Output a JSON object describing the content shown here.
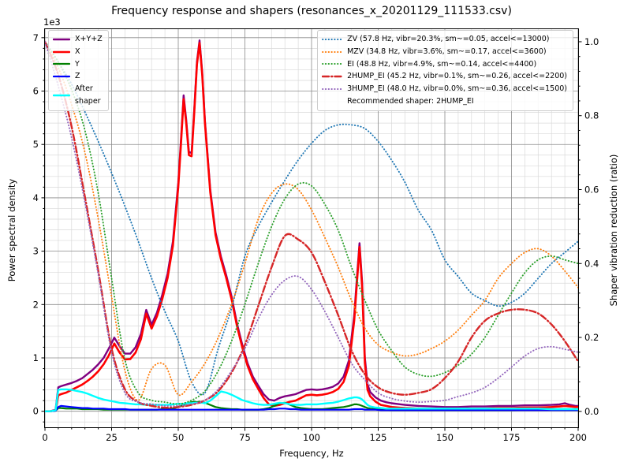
{
  "chart_data": {
    "type": "line",
    "title": "Frequency response and shapers (resonances_x_20201129_111533.csv)",
    "xlabel": "Frequency, Hz",
    "ylabel_left": "Power spectral density",
    "ylabel_right": "Shaper vibration reduction (ratio)",
    "offset_text": "1e3",
    "xlim": [
      0,
      200
    ],
    "ylim_left": [
      -300,
      7160
    ],
    "ylim_right": [
      -0.043,
      1.034
    ],
    "xticks": {
      "values": [
        0,
        25,
        50,
        75,
        100,
        125,
        150,
        175,
        200
      ],
      "minor_step": 5
    },
    "yticks_left": {
      "values": [
        0,
        1,
        2,
        3,
        4,
        5,
        6,
        7
      ],
      "minor_step": 0.2,
      "unit": 1000
    },
    "yticks_right": {
      "values": [
        0.0,
        0.2,
        0.4,
        0.6,
        0.8,
        1.0
      ],
      "labels": [
        "0.0",
        "0.2",
        "0.4",
        "0.6",
        "0.8",
        "1.0"
      ],
      "minor_step": 0.04
    },
    "grid": {
      "major_color": "#8a8a8a",
      "minor_color": "#d9d9d9"
    },
    "spine_color": "#000000",
    "psd": {
      "x": [
        0,
        2,
        4,
        5,
        6,
        8,
        10,
        12,
        14,
        16,
        18,
        20,
        22,
        24,
        26,
        28,
        30,
        32,
        34,
        36,
        38,
        40,
        42,
        44,
        46,
        48,
        50,
        51,
        52,
        53,
        54,
        55,
        56,
        57,
        58,
        59,
        60,
        62,
        64,
        66,
        68,
        70,
        72,
        74,
        76,
        78,
        80,
        82,
        84,
        86,
        88,
        90,
        92,
        94,
        96,
        98,
        100,
        102,
        104,
        106,
        108,
        110,
        112,
        114,
        116,
        117,
        118,
        119,
        120,
        121,
        122,
        124,
        126,
        128,
        130,
        135,
        140,
        145,
        150,
        155,
        160,
        165,
        170,
        175,
        180,
        185,
        190,
        193,
        195,
        197,
        199,
        200
      ],
      "units": "1e3",
      "series": [
        {
          "name": "xyz",
          "label": "X+Y+Z",
          "color": "#800080",
          "style": "solid",
          "lw": 2.4,
          "values": [
            0,
            0,
            0.03,
            0.45,
            0.47,
            0.5,
            0.53,
            0.57,
            0.62,
            0.7,
            0.78,
            0.88,
            1.0,
            1.18,
            1.38,
            1.22,
            1.08,
            1.08,
            1.2,
            1.45,
            1.9,
            1.62,
            1.85,
            2.18,
            2.58,
            3.18,
            4.28,
            5.08,
            5.92,
            5.46,
            4.86,
            4.84,
            5.66,
            6.55,
            6.95,
            6.35,
            5.45,
            4.15,
            3.35,
            2.9,
            2.55,
            2.15,
            1.65,
            1.25,
            0.9,
            0.65,
            0.48,
            0.32,
            0.22,
            0.2,
            0.25,
            0.28,
            0.3,
            0.32,
            0.36,
            0.4,
            0.41,
            0.4,
            0.41,
            0.43,
            0.46,
            0.52,
            0.65,
            0.95,
            1.8,
            2.5,
            3.15,
            2.4,
            1.0,
            0.5,
            0.36,
            0.26,
            0.2,
            0.17,
            0.15,
            0.12,
            0.1,
            0.09,
            0.08,
            0.08,
            0.09,
            0.09,
            0.1,
            0.1,
            0.11,
            0.11,
            0.12,
            0.13,
            0.15,
            0.12,
            0.1,
            0.1
          ]
        },
        {
          "name": "x",
          "label": "X",
          "color": "#ff0000",
          "style": "solid",
          "lw": 2.6,
          "values": [
            0,
            0,
            0.02,
            0.3,
            0.32,
            0.35,
            0.4,
            0.45,
            0.5,
            0.57,
            0.65,
            0.75,
            0.88,
            1.05,
            1.27,
            1.1,
            0.97,
            0.98,
            1.1,
            1.35,
            1.83,
            1.55,
            1.78,
            2.1,
            2.5,
            3.1,
            4.2,
            5.0,
            5.85,
            5.4,
            4.8,
            4.78,
            5.6,
            6.5,
            6.9,
            6.3,
            5.4,
            4.1,
            3.3,
            2.85,
            2.5,
            2.1,
            1.6,
            1.2,
            0.85,
            0.6,
            0.42,
            0.25,
            0.13,
            0.1,
            0.12,
            0.15,
            0.18,
            0.2,
            0.25,
            0.3,
            0.31,
            0.3,
            0.31,
            0.33,
            0.36,
            0.42,
            0.55,
            0.85,
            1.7,
            2.4,
            3.08,
            2.3,
            0.9,
            0.4,
            0.28,
            0.18,
            0.12,
            0.1,
            0.08,
            0.06,
            0.05,
            0.04,
            0.04,
            0.04,
            0.05,
            0.05,
            0.06,
            0.06,
            0.07,
            0.07,
            0.08,
            0.09,
            0.1,
            0.09,
            0.08,
            0.08
          ]
        },
        {
          "name": "y",
          "label": "Y",
          "color": "#008000",
          "style": "solid",
          "lw": 2.2,
          "values": [
            0,
            0,
            0.01,
            0.06,
            0.06,
            0.05,
            0.05,
            0.05,
            0.04,
            0.04,
            0.04,
            0.04,
            0.03,
            0.03,
            0.03,
            0.03,
            0.03,
            0.03,
            0.03,
            0.03,
            0.03,
            0.03,
            0.03,
            0.04,
            0.04,
            0.05,
            0.08,
            0.1,
            0.12,
            0.14,
            0.16,
            0.17,
            0.18,
            0.17,
            0.18,
            0.16,
            0.16,
            0.12,
            0.08,
            0.06,
            0.05,
            0.04,
            0.04,
            0.03,
            0.03,
            0.03,
            0.03,
            0.04,
            0.06,
            0.1,
            0.15,
            0.16,
            0.12,
            0.08,
            0.06,
            0.05,
            0.04,
            0.04,
            0.04,
            0.05,
            0.06,
            0.07,
            0.08,
            0.1,
            0.13,
            0.13,
            0.12,
            0.1,
            0.08,
            0.06,
            0.05,
            0.04,
            0.03,
            0.03,
            0.02,
            0.02,
            0.02,
            0.02,
            0.02,
            0.02,
            0.02,
            0.02,
            0.02,
            0.02,
            0.03,
            0.03,
            0.03,
            0.04,
            0.04,
            0.04,
            0.03,
            0.03
          ]
        },
        {
          "name": "z",
          "label": "Z",
          "color": "#0000ff",
          "style": "solid",
          "lw": 2.2,
          "values": [
            0,
            0,
            0.01,
            0.08,
            0.1,
            0.09,
            0.08,
            0.07,
            0.06,
            0.06,
            0.05,
            0.05,
            0.05,
            0.04,
            0.04,
            0.04,
            0.04,
            0.03,
            0.03,
            0.03,
            0.03,
            0.03,
            0.03,
            0.03,
            0.03,
            0.03,
            0.03,
            0.03,
            0.03,
            0.03,
            0.03,
            0.03,
            0.03,
            0.03,
            0.03,
            0.03,
            0.03,
            0.03,
            0.03,
            0.03,
            0.03,
            0.03,
            0.03,
            0.03,
            0.03,
            0.03,
            0.03,
            0.03,
            0.04,
            0.04,
            0.05,
            0.05,
            0.04,
            0.04,
            0.03,
            0.03,
            0.03,
            0.03,
            0.03,
            0.03,
            0.03,
            0.03,
            0.03,
            0.03,
            0.04,
            0.04,
            0.04,
            0.04,
            0.03,
            0.03,
            0.03,
            0.03,
            0.02,
            0.02,
            0.02,
            0.02,
            0.02,
            0.02,
            0.02,
            0.02,
            0.02,
            0.02,
            0.02,
            0.02,
            0.02,
            0.02,
            0.02,
            0.02,
            0.02,
            0.02,
            0.02,
            0.02
          ]
        },
        {
          "name": "after-shaper",
          "label": "After\nshaper",
          "color": "#00ffff",
          "style": "solid",
          "lw": 2.4,
          "values": [
            0,
            0,
            0.02,
            0.4,
            0.41,
            0.41,
            0.4,
            0.38,
            0.36,
            0.33,
            0.29,
            0.25,
            0.22,
            0.2,
            0.18,
            0.16,
            0.15,
            0.14,
            0.13,
            0.13,
            0.12,
            0.12,
            0.12,
            0.12,
            0.12,
            0.13,
            0.14,
            0.14,
            0.14,
            0.15,
            0.15,
            0.15,
            0.16,
            0.16,
            0.16,
            0.16,
            0.15,
            0.2,
            0.28,
            0.37,
            0.35,
            0.31,
            0.26,
            0.21,
            0.18,
            0.15,
            0.13,
            0.12,
            0.12,
            0.14,
            0.16,
            0.15,
            0.13,
            0.12,
            0.12,
            0.13,
            0.13,
            0.13,
            0.14,
            0.15,
            0.16,
            0.18,
            0.21,
            0.24,
            0.26,
            0.26,
            0.25,
            0.22,
            0.17,
            0.12,
            0.09,
            0.07,
            0.06,
            0.05,
            0.05,
            0.05,
            0.05,
            0.05,
            0.05,
            0.05,
            0.05,
            0.05,
            0.05,
            0.05,
            0.05,
            0.05,
            0.04,
            0.04,
            0.04,
            0.04,
            0.04,
            0.04
          ]
        }
      ]
    },
    "shapers": {
      "x": [
        0,
        5,
        10,
        15,
        20,
        25,
        30,
        35,
        40,
        45,
        50,
        55,
        60,
        65,
        70,
        75,
        80,
        85,
        90,
        95,
        100,
        105,
        110,
        115,
        120,
        125,
        130,
        135,
        140,
        145,
        150,
        155,
        160,
        165,
        170,
        175,
        180,
        185,
        190,
        195,
        200
      ],
      "recommended_label": "Recommended shaper: 2HUMP_EI",
      "series": [
        {
          "name": "zv",
          "label": "ZV (57.8 Hz, vibr=20.3%, sm~=0.05, accel<=13000)",
          "color": "#1f77b4",
          "style": "dotted",
          "lw": 1.9,
          "values": [
            1.0,
            0.945,
            0.885,
            0.81,
            0.73,
            0.645,
            0.555,
            0.46,
            0.36,
            0.27,
            0.19,
            0.08,
            0.05,
            0.17,
            0.28,
            0.42,
            0.5,
            0.565,
            0.625,
            0.68,
            0.725,
            0.76,
            0.775,
            0.775,
            0.765,
            0.73,
            0.68,
            0.62,
            0.545,
            0.49,
            0.41,
            0.365,
            0.32,
            0.3,
            0.285,
            0.295,
            0.32,
            0.36,
            0.4,
            0.43,
            0.46
          ]
        },
        {
          "name": "mzv",
          "label": "MZV (34.8 Hz, vibr=3.6%, sm~=0.17, accel<=3600)",
          "color": "#ff7f0e",
          "style": "dotted",
          "lw": 1.9,
          "values": [
            1.0,
            0.93,
            0.83,
            0.7,
            0.52,
            0.31,
            0.11,
            0.03,
            0.115,
            0.125,
            0.045,
            0.08,
            0.13,
            0.2,
            0.29,
            0.4,
            0.52,
            0.59,
            0.615,
            0.6,
            0.545,
            0.47,
            0.39,
            0.3,
            0.225,
            0.18,
            0.16,
            0.15,
            0.155,
            0.17,
            0.19,
            0.22,
            0.26,
            0.3,
            0.36,
            0.4,
            0.43,
            0.44,
            0.42,
            0.38,
            0.335
          ]
        },
        {
          "name": "ei",
          "label": "EI (48.8 Hz, vibr=4.9%, sm~=0.14, accel<=4400)",
          "color": "#2ca02c",
          "style": "dotted",
          "lw": 1.9,
          "values": [
            1.0,
            0.945,
            0.87,
            0.76,
            0.59,
            0.36,
            0.14,
            0.05,
            0.03,
            0.025,
            0.02,
            0.03,
            0.055,
            0.11,
            0.19,
            0.29,
            0.4,
            0.5,
            0.575,
            0.615,
            0.61,
            0.56,
            0.49,
            0.39,
            0.3,
            0.22,
            0.165,
            0.12,
            0.1,
            0.095,
            0.105,
            0.125,
            0.155,
            0.2,
            0.26,
            0.32,
            0.375,
            0.41,
            0.42,
            0.41,
            0.4
          ]
        },
        {
          "name": "2hump-ei",
          "label": "2HUMP_EI (45.2 Hz, vibr=0.1%, sm~=0.26, accel<=2200)",
          "color": "#d62728",
          "style": "dashdot",
          "lw": 2.4,
          "values": [
            1.0,
            0.91,
            0.77,
            0.58,
            0.38,
            0.17,
            0.06,
            0.025,
            0.015,
            0.01,
            0.012,
            0.018,
            0.03,
            0.055,
            0.105,
            0.18,
            0.285,
            0.39,
            0.475,
            0.465,
            0.43,
            0.35,
            0.26,
            0.165,
            0.1,
            0.065,
            0.05,
            0.045,
            0.05,
            0.06,
            0.09,
            0.135,
            0.2,
            0.245,
            0.265,
            0.275,
            0.275,
            0.265,
            0.235,
            0.19,
            0.135
          ]
        },
        {
          "name": "3hump-ei",
          "label": "3HUMP_EI (48.0 Hz, vibr=0.0%, sm~=0.36, accel<=1500)",
          "color": "#9467bd",
          "style": "dotted",
          "lw": 1.9,
          "values": [
            1.0,
            0.88,
            0.74,
            0.565,
            0.37,
            0.16,
            0.05,
            0.025,
            0.02,
            0.015,
            0.015,
            0.02,
            0.03,
            0.06,
            0.11,
            0.17,
            0.25,
            0.315,
            0.355,
            0.365,
            0.33,
            0.27,
            0.2,
            0.13,
            0.085,
            0.05,
            0.035,
            0.028,
            0.025,
            0.027,
            0.03,
            0.04,
            0.05,
            0.065,
            0.09,
            0.12,
            0.15,
            0.17,
            0.175,
            0.168,
            0.16
          ]
        }
      ]
    }
  }
}
